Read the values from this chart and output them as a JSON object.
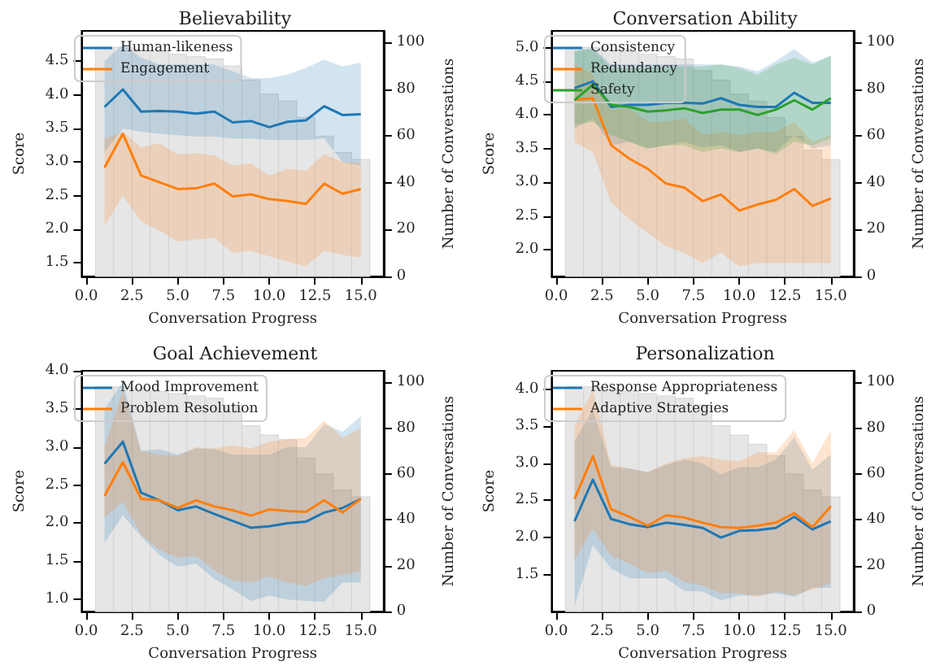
{
  "chart_data": [
    {
      "type": "line",
      "title": "Believability",
      "xlabel": "Conversation Progress",
      "ylabel": "Score",
      "y2label": "Number of Conversations",
      "legend": "top left",
      "grid": false,
      "xlim": [
        -0.25,
        16.25
      ],
      "xticks": [
        {
          "value": 0,
          "label": "0.0"
        },
        2.5,
        {
          "value": 5,
          "label": "5.0"
        },
        7.5,
        {
          "value": 10,
          "label": "10.0"
        },
        12.5,
        {
          "value": 15,
          "label": "15.0"
        }
      ],
      "ylim": [
        1.3,
        4.95
      ],
      "yticks": [
        1.5,
        {
          "value": 2,
          "label": "2.0"
        },
        2.5,
        {
          "value": 3,
          "label": "3.0"
        },
        3.5,
        {
          "value": 4,
          "label": "4.0"
        },
        4.5
      ],
      "y2lim": [
        0,
        105
      ],
      "y2ticks": [
        0,
        20,
        40,
        60,
        80,
        100
      ],
      "series": [
        {
          "type": "histogram",
          "axis": "y2",
          "color": "#e6e6e6",
          "bins": [
            0.5,
            1.5,
            2.5,
            3.5,
            4.5,
            5.5,
            6.5,
            7.5,
            8.5,
            9.5,
            10.5,
            11.5,
            12.5,
            13.5,
            14.5,
            15.5
          ],
          "values": [
            98,
            98,
            97,
            96,
            95,
            94,
            93,
            90,
            84,
            78,
            75,
            68,
            60,
            53,
            50
          ]
        },
        {
          "name": "Human-likeness",
          "color": "#1f77b4",
          "x": [
            1,
            2,
            3,
            4,
            5,
            6,
            7,
            8,
            9,
            10,
            11,
            12,
            13,
            14,
            15
          ],
          "values": [
            3.82,
            4.08,
            3.75,
            3.76,
            3.75,
            3.72,
            3.75,
            3.59,
            3.61,
            3.52,
            3.6,
            3.62,
            3.83,
            3.7,
            3.71
          ],
          "upper": [
            4.5,
            4.75,
            4.55,
            4.45,
            4.45,
            4.45,
            4.45,
            4.35,
            4.25,
            4.25,
            4.3,
            4.4,
            4.52,
            4.42,
            4.48
          ],
          "lower": [
            3.15,
            3.5,
            3.45,
            3.42,
            3.4,
            3.38,
            3.38,
            3.35,
            3.35,
            3.33,
            3.33,
            3.33,
            3.35,
            3.0,
            2.95
          ]
        },
        {
          "name": "Engagement",
          "color": "#ff7f0e",
          "x": [
            1,
            2,
            3,
            4,
            5,
            6,
            7,
            8,
            9,
            10,
            11,
            12,
            13,
            14,
            15
          ],
          "values": [
            2.92,
            3.42,
            2.8,
            2.7,
            2.6,
            2.61,
            2.68,
            2.49,
            2.52,
            2.45,
            2.42,
            2.38,
            2.68,
            2.53,
            2.6
          ],
          "upper": [
            3.35,
            3.45,
            3.22,
            3.28,
            3.12,
            3.13,
            3.1,
            2.95,
            2.98,
            2.8,
            2.9,
            2.87,
            3.12,
            3.0,
            2.98
          ],
          "lower": [
            2.05,
            2.5,
            2.12,
            1.98,
            1.82,
            1.85,
            1.87,
            1.65,
            1.68,
            1.6,
            1.52,
            1.45,
            1.68,
            1.62,
            1.58
          ]
        }
      ]
    },
    {
      "type": "line",
      "title": "Conversation Ability",
      "xlabel": "Conversation Progress",
      "ylabel": "Score",
      "y2label": "Number of Conversations",
      "legend": "top left",
      "grid": false,
      "xlim": [
        -0.25,
        16.25
      ],
      "xticks": [
        {
          "value": 0,
          "label": "0.0"
        },
        2.5,
        {
          "value": 5,
          "label": "5.0"
        },
        7.5,
        {
          "value": 10,
          "label": "10.0"
        },
        12.5,
        {
          "value": 15,
          "label": "15.0"
        }
      ],
      "ylim": [
        1.6,
        5.25
      ],
      "yticks": [
        {
          "value": 2,
          "label": "2.0"
        },
        2.5,
        {
          "value": 3,
          "label": "3.0"
        },
        3.5,
        {
          "value": 4,
          "label": "4.0"
        },
        4.5,
        {
          "value": 5,
          "label": "5.0"
        }
      ],
      "y2lim": [
        0,
        105
      ],
      "y2ticks": [
        0,
        20,
        40,
        60,
        80,
        100
      ],
      "series": [
        {
          "type": "histogram",
          "axis": "y2",
          "color": "#e6e6e6",
          "bins": [
            0.5,
            1.5,
            2.5,
            3.5,
            4.5,
            5.5,
            6.5,
            7.5,
            8.5,
            9.5,
            10.5,
            11.5,
            12.5,
            13.5,
            14.5,
            15.5
          ],
          "values": [
            98,
            98,
            97,
            96,
            95,
            94,
            93,
            88,
            84,
            78,
            75,
            68,
            60,
            54,
            50
          ]
        },
        {
          "name": "Consistency",
          "color": "#1f77b4",
          "x": [
            1,
            2,
            3,
            4,
            5,
            6,
            7,
            8,
            9,
            10,
            11,
            12,
            13,
            14,
            15
          ],
          "values": [
            4.4,
            4.5,
            4.12,
            4.15,
            4.15,
            4.18,
            4.18,
            4.17,
            4.25,
            4.15,
            4.12,
            4.12,
            4.33,
            4.18,
            4.18
          ],
          "upper": [
            4.95,
            5.0,
            4.75,
            4.75,
            4.75,
            4.75,
            4.75,
            4.75,
            4.75,
            4.72,
            4.65,
            4.8,
            4.98,
            4.78,
            4.88
          ],
          "lower": [
            3.8,
            3.95,
            3.55,
            3.6,
            3.5,
            3.55,
            3.6,
            3.52,
            3.55,
            3.45,
            3.5,
            3.45,
            3.7,
            3.5,
            3.55
          ]
        },
        {
          "name": "Redundancy",
          "color": "#ff7f0e",
          "x": [
            1,
            2,
            3,
            4,
            5,
            6,
            7,
            8,
            9,
            10,
            11,
            12,
            13,
            14,
            15
          ],
          "values": [
            4.23,
            4.25,
            3.55,
            3.35,
            3.2,
            2.98,
            2.92,
            2.72,
            2.82,
            2.58,
            2.67,
            2.74,
            2.9,
            2.65,
            2.76
          ],
          "upper": [
            4.75,
            4.6,
            4.08,
            4.1,
            3.9,
            3.9,
            3.95,
            3.7,
            3.75,
            3.7,
            3.75,
            3.75,
            3.9,
            3.6,
            3.7
          ],
          "lower": [
            3.6,
            3.45,
            2.7,
            2.45,
            2.25,
            2.05,
            1.95,
            1.8,
            1.95,
            1.75,
            1.8,
            1.8,
            1.8,
            1.8,
            1.8
          ]
        },
        {
          "name": "Safety",
          "color": "#2ca02c",
          "x": [
            1,
            2,
            3,
            4,
            5,
            6,
            7,
            8,
            9,
            10,
            11,
            12,
            13,
            14,
            15
          ],
          "values": [
            4.22,
            4.45,
            4.15,
            4.12,
            4.05,
            4.07,
            4.1,
            4.03,
            4.08,
            4.08,
            4.0,
            4.08,
            4.22,
            4.08,
            4.25
          ],
          "upper": [
            4.95,
            4.98,
            4.7,
            4.7,
            4.7,
            4.72,
            4.72,
            4.72,
            4.75,
            4.7,
            4.6,
            4.75,
            4.85,
            4.75,
            4.88
          ],
          "lower": [
            3.85,
            3.9,
            3.7,
            3.6,
            3.5,
            3.55,
            3.55,
            3.45,
            3.5,
            3.45,
            3.5,
            3.42,
            3.6,
            3.55,
            3.65
          ]
        }
      ]
    },
    {
      "type": "line",
      "title": "Goal Achievement",
      "xlabel": "Conversation Progress",
      "ylabel": "Score",
      "y2label": "Number of Conversations",
      "legend": "top left",
      "grid": false,
      "xlim": [
        -0.25,
        16.25
      ],
      "xticks": [
        {
          "value": 0,
          "label": "0.0"
        },
        2.5,
        {
          "value": 5,
          "label": "5.0"
        },
        7.5,
        {
          "value": 10,
          "label": "10.0"
        },
        12.5,
        {
          "value": 15,
          "label": "15.0"
        }
      ],
      "ylim": [
        0.84,
        4.0
      ],
      "yticks": [
        {
          "value": 1,
          "label": "1.0"
        },
        1.5,
        {
          "value": 2,
          "label": "2.0"
        },
        2.5,
        {
          "value": 3,
          "label": "3.0"
        },
        3.5,
        {
          "value": 4,
          "label": "4.0"
        }
      ],
      "y2lim": [
        0,
        105
      ],
      "y2ticks": [
        0,
        20,
        40,
        60,
        80,
        100
      ],
      "series": [
        {
          "type": "histogram",
          "axis": "y2",
          "color": "#e6e6e6",
          "bins": [
            0.5,
            1.5,
            2.5,
            3.5,
            4.5,
            5.5,
            6.5,
            7.5,
            8.5,
            9.5,
            10.5,
            11.5,
            12.5,
            13.5,
            14.5,
            15.5
          ],
          "values": [
            98,
            98,
            97,
            96,
            95,
            94,
            93,
            90,
            81,
            77,
            75,
            67,
            60,
            53,
            50
          ]
        },
        {
          "name": "Mood Improvement",
          "color": "#1f77b4",
          "x": [
            1,
            2,
            3,
            4,
            5,
            6,
            7,
            8,
            9,
            10,
            11,
            12,
            13,
            14,
            15
          ],
          "values": [
            2.78,
            3.07,
            2.4,
            2.3,
            2.17,
            2.22,
            2.12,
            2.03,
            1.94,
            1.96,
            2.0,
            2.02,
            2.14,
            2.2,
            2.32
          ],
          "upper": [
            3.5,
            3.85,
            2.95,
            2.97,
            2.9,
            2.98,
            2.97,
            2.9,
            2.9,
            2.9,
            3.0,
            3.0,
            3.3,
            3.2,
            3.4
          ],
          "lower": [
            1.75,
            2.1,
            1.83,
            1.58,
            1.43,
            1.47,
            1.27,
            1.13,
            0.98,
            1.05,
            1.0,
            0.98,
            0.97,
            1.22,
            1.22
          ]
        },
        {
          "name": "Problem Resolution",
          "color": "#ff7f0e",
          "x": [
            1,
            2,
            3,
            4,
            5,
            6,
            7,
            8,
            9,
            10,
            11,
            12,
            13,
            14,
            15
          ],
          "values": [
            2.36,
            2.8,
            2.32,
            2.3,
            2.2,
            2.3,
            2.22,
            2.17,
            2.1,
            2.18,
            2.16,
            2.15,
            2.3,
            2.14,
            2.32
          ],
          "upper": [
            3.0,
            3.75,
            2.95,
            2.9,
            2.88,
            3.0,
            2.98,
            3.02,
            2.98,
            3.07,
            3.1,
            3.12,
            3.35,
            3.12,
            3.25
          ],
          "lower": [
            2.08,
            2.28,
            1.85,
            1.65,
            1.55,
            1.57,
            1.38,
            1.25,
            1.22,
            1.3,
            1.22,
            1.18,
            1.28,
            1.32,
            1.37
          ]
        }
      ]
    },
    {
      "type": "line",
      "title": "Personalization",
      "xlabel": "Conversation Progress",
      "ylabel": "Score",
      "y2label": "Number of Conversations",
      "legend": "top left",
      "grid": false,
      "xlim": [
        -0.25,
        16.25
      ],
      "xticks": [
        {
          "value": 0,
          "label": "0.0"
        },
        2.5,
        {
          "value": 5,
          "label": "5.0"
        },
        7.5,
        {
          "value": 10,
          "label": "10.0"
        },
        12.5,
        {
          "value": 15,
          "label": "15.0"
        }
      ],
      "ylim": [
        1.0,
        4.25
      ],
      "yticks": [
        1.5,
        {
          "value": 2,
          "label": "2.0"
        },
        2.5,
        {
          "value": 3,
          "label": "3.0"
        },
        3.5,
        {
          "value": 4,
          "label": "4.0"
        }
      ],
      "y2lim": [
        0,
        105
      ],
      "y2ticks": [
        0,
        20,
        40,
        60,
        80,
        100
      ],
      "series": [
        {
          "type": "histogram",
          "axis": "y2",
          "color": "#e6e6e6",
          "bins": [
            0.5,
            1.5,
            2.5,
            3.5,
            4.5,
            5.5,
            6.5,
            7.5,
            8.5,
            9.5,
            10.5,
            11.5,
            12.5,
            13.5,
            14.5,
            15.5
          ],
          "values": [
            98,
            98,
            97,
            96,
            95,
            94,
            93,
            90,
            81,
            77,
            73,
            68,
            60,
            53,
            50
          ]
        },
        {
          "name": "Response Appropriateness",
          "color": "#1f77b4",
          "x": [
            1,
            2,
            3,
            4,
            5,
            6,
            7,
            8,
            9,
            10,
            11,
            12,
            13,
            14,
            15
          ],
          "values": [
            2.22,
            2.78,
            2.25,
            2.18,
            2.14,
            2.2,
            2.17,
            2.13,
            2.0,
            2.09,
            2.1,
            2.13,
            2.28,
            2.11,
            2.22
          ],
          "upper": [
            3.3,
            3.72,
            2.95,
            2.93,
            2.88,
            2.98,
            3.05,
            3.0,
            2.85,
            2.95,
            2.95,
            3.05,
            3.35,
            2.92,
            3.12
          ],
          "lower": [
            1.07,
            1.9,
            1.58,
            1.45,
            1.45,
            1.45,
            1.28,
            1.27,
            1.15,
            1.22,
            1.22,
            1.25,
            1.2,
            1.32,
            1.32
          ]
        },
        {
          "name": "Adaptive Strategies",
          "color": "#ff7f0e",
          "x": [
            1,
            2,
            3,
            4,
            5,
            6,
            7,
            8,
            9,
            10,
            11,
            12,
            13,
            14,
            15
          ],
          "values": [
            2.52,
            3.1,
            2.38,
            2.28,
            2.16,
            2.3,
            2.27,
            2.2,
            2.14,
            2.13,
            2.16,
            2.2,
            2.33,
            2.14,
            2.42
          ],
          "upper": [
            3.5,
            4.0,
            2.98,
            2.93,
            2.88,
            3.0,
            3.07,
            3.1,
            3.05,
            3.03,
            3.15,
            3.15,
            3.45,
            3.0,
            3.45
          ],
          "lower": [
            1.7,
            2.12,
            1.75,
            1.65,
            1.52,
            1.55,
            1.4,
            1.35,
            1.25,
            1.25,
            1.2,
            1.27,
            1.22,
            1.3,
            1.38
          ]
        }
      ]
    }
  ]
}
